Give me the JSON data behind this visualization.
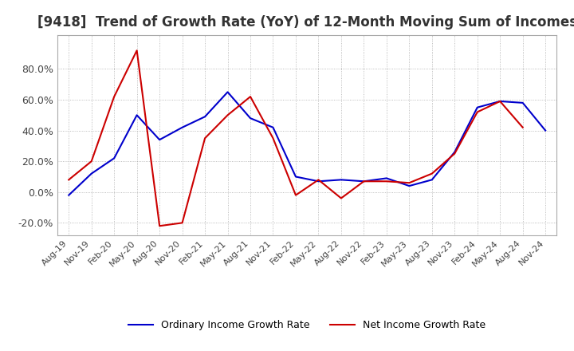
{
  "title": "[9418]  Trend of Growth Rate (YoY) of 12-Month Moving Sum of Incomes",
  "title_fontsize": 12,
  "ylim": [
    -0.28,
    1.02
  ],
  "yticks": [
    -0.2,
    0.0,
    0.2,
    0.4,
    0.6,
    0.8
  ],
  "ytick_labels": [
    "-20.0%",
    "0.0%",
    "20.0%",
    "40.0%",
    "60.0%",
    "80.0%"
  ],
  "background_color": "#ffffff",
  "grid_color": "#aaaaaa",
  "ordinary_color": "#0000cc",
  "net_color": "#cc0000",
  "legend_ordinary": "Ordinary Income Growth Rate",
  "legend_net": "Net Income Growth Rate",
  "x_labels": [
    "Aug-19",
    "Nov-19",
    "Feb-20",
    "May-20",
    "Aug-20",
    "Nov-20",
    "Feb-21",
    "May-21",
    "Aug-21",
    "Nov-21",
    "Feb-22",
    "May-22",
    "Aug-22",
    "Nov-22",
    "Feb-23",
    "May-23",
    "Aug-23",
    "Nov-23",
    "Feb-24",
    "May-24",
    "Aug-24",
    "Nov-24"
  ],
  "ordinary_income": [
    -0.02,
    0.12,
    0.22,
    0.5,
    0.34,
    0.42,
    0.49,
    0.65,
    0.48,
    0.42,
    0.1,
    0.07,
    0.08,
    0.07,
    0.09,
    0.04,
    0.08,
    0.26,
    0.55,
    0.59,
    0.58,
    0.4
  ],
  "net_income": [
    0.08,
    0.2,
    0.62,
    0.92,
    -0.22,
    -0.2,
    0.35,
    0.5,
    0.62,
    0.35,
    -0.02,
    0.08,
    -0.04,
    0.07,
    0.07,
    0.06,
    0.12,
    0.25,
    0.52,
    0.59,
    0.42,
    null
  ]
}
